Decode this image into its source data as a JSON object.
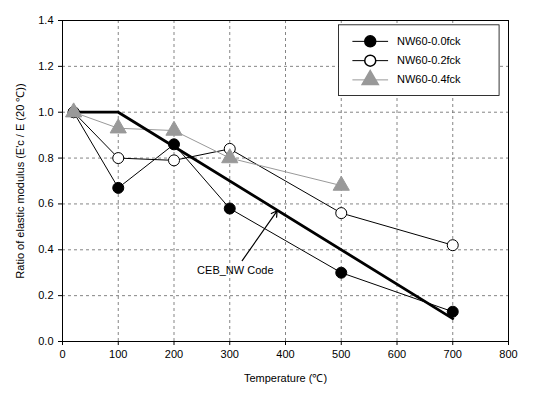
{
  "chart_data": {
    "type": "line",
    "x_label": "Temperature (℃)",
    "y_label": "Ratio of elastic modulus (E'c / E (20 ℃))",
    "xlim": [
      0,
      800
    ],
    "xticks": [
      0,
      100,
      200,
      300,
      400,
      500,
      600,
      700,
      800
    ],
    "ylim": [
      0,
      1.4
    ],
    "yticks": [
      {
        "value": 0,
        "label": "0.0"
      },
      {
        "value": 0.2,
        "label": "0.2"
      },
      {
        "value": 0.4,
        "label": "0.4"
      },
      {
        "value": 0.6,
        "label": "0.6"
      },
      {
        "value": 0.8,
        "label": "0.8"
      },
      {
        "value": 1.0,
        "label": "1.0"
      },
      {
        "value": 1.2,
        "label": "1.2"
      },
      {
        "value": 1.4,
        "label": "1.4"
      }
    ],
    "grid": true,
    "legend": "top-right",
    "series": [
      {
        "name": "NW60-0.0fck",
        "color": "#000000",
        "marker": "circle",
        "line_style": "solid",
        "x": [
          20,
          100,
          200,
          300,
          500,
          700
        ],
        "values": [
          1.0,
          0.67,
          0.86,
          0.58,
          0.3,
          0.13
        ]
      },
      {
        "name": "NW60-0.2fck",
        "color": "#000000",
        "marker": "open-circle",
        "line_style": "solid",
        "x": [
          20,
          100,
          200,
          300,
          500,
          700
        ],
        "values": [
          1.0,
          0.8,
          0.79,
          0.84,
          0.56,
          0.42
        ]
      },
      {
        "name": "NW60-0.4fck",
        "color": "#999999",
        "marker": "triangle",
        "line_style": "solid",
        "x": [
          20,
          100,
          200,
          300,
          500
        ],
        "values": [
          1.0,
          0.93,
          0.92,
          0.8,
          0.68
        ]
      },
      {
        "color": "#000000",
        "marker": "none",
        "line_style": "bold",
        "x": [
          20,
          100,
          700
        ],
        "values": [
          1.0,
          1.0,
          0.1
        ]
      }
    ],
    "annotations": [
      {
        "text": "CEB_NW Code",
        "x": 310,
        "y": 0.31,
        "arrow_x": 385,
        "arrow_y": 0.57
      }
    ]
  }
}
